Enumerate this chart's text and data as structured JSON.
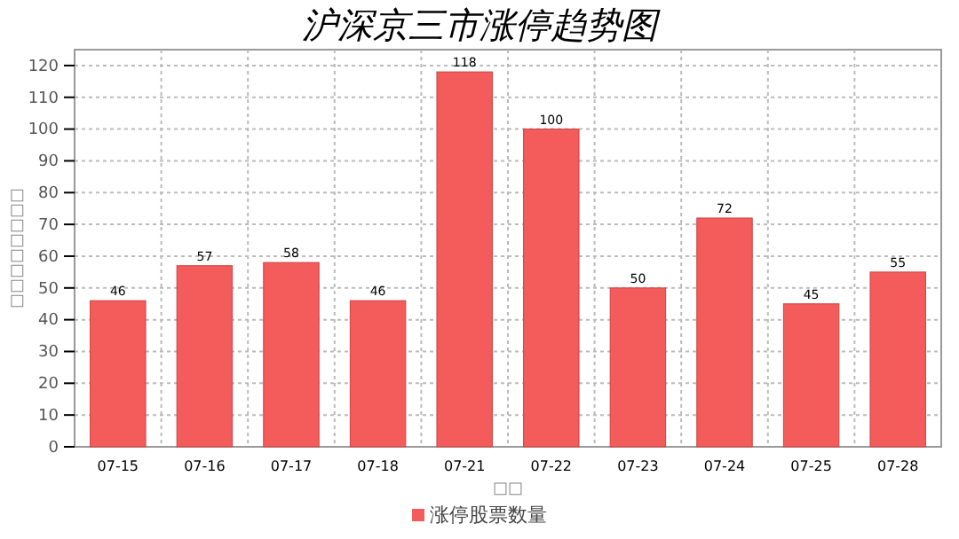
{
  "chart_data": {
    "type": "bar",
    "title": "沪深京三市涨停趋势图",
    "xlabel": "□□",
    "ylabel": "□□□□□□□□",
    "categories": [
      "07-15",
      "07-16",
      "07-17",
      "07-18",
      "07-21",
      "07-22",
      "07-23",
      "07-24",
      "07-25",
      "07-28"
    ],
    "series": [
      {
        "name": "涨停股票数量",
        "color": "#f45b5b",
        "values": [
          46,
          57,
          58,
          46,
          118,
          100,
          50,
          72,
          45,
          55
        ]
      }
    ],
    "ylim": [
      0,
      125
    ],
    "yticks": [
      0,
      10,
      20,
      30,
      40,
      50,
      60,
      70,
      80,
      90,
      100,
      110,
      120
    ],
    "grid": true,
    "legend": "bottom",
    "data_labels": true
  }
}
